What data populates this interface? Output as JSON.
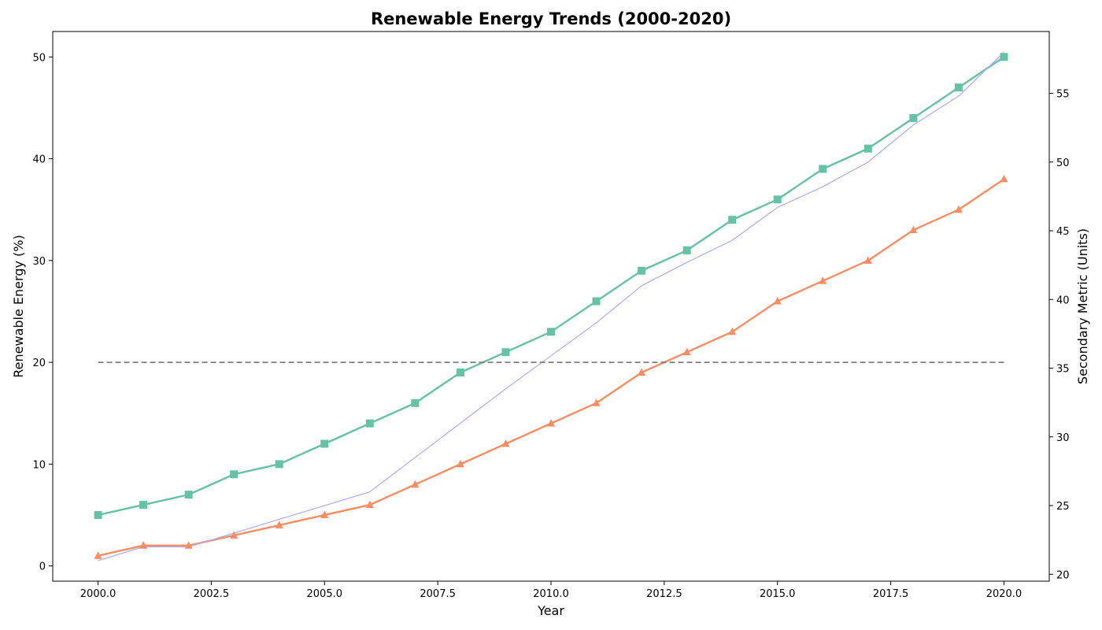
{
  "chart_data": {
    "type": "line",
    "title": "Renewable Energy Trends (2000-2020)",
    "xlabel": "Year",
    "ylabel": "Renewable Energy (%)",
    "y2label": "Secondary Metric (Units)",
    "x": [
      2000,
      2001,
      2002,
      2003,
      2004,
      2005,
      2006,
      2007,
      2008,
      2009,
      2010,
      2011,
      2012,
      2013,
      2014,
      2015,
      2016,
      2017,
      2018,
      2019,
      2020
    ],
    "xlim": [
      1999.0,
      2021.0
    ],
    "ylim": [
      -1.5,
      52.5
    ],
    "y2lim": [
      19.5,
      59.5
    ],
    "x_ticks": [
      "2000.0",
      "2002.5",
      "2005.0",
      "2007.5",
      "2010.0",
      "2012.5",
      "2015.0",
      "2017.5",
      "2020.0"
    ],
    "y_ticks": [
      "0",
      "10",
      "20",
      "30",
      "40",
      "50"
    ],
    "y2_ticks": [
      "20",
      "25",
      "30",
      "35",
      "40",
      "45",
      "50",
      "55"
    ],
    "grid": false,
    "series": [
      {
        "values": [
          5,
          6,
          7,
          9,
          10,
          12,
          14,
          16,
          19,
          21,
          23,
          26,
          29,
          31,
          34,
          36,
          39,
          41,
          44,
          47,
          50
        ],
        "axis": "left",
        "color": "#66c2a5",
        "marker": "square"
      },
      {
        "values": [
          1,
          2,
          2,
          3,
          4,
          5,
          6,
          8,
          10,
          12,
          14,
          16,
          19,
          21,
          23,
          26,
          28,
          30,
          33,
          35,
          38
        ],
        "axis": "left",
        "color": "#fc8d62",
        "marker": "triangle"
      },
      {
        "values": [
          21,
          22,
          22,
          23,
          24,
          25,
          26,
          28.5,
          31,
          33.5,
          35.9,
          38.3,
          41,
          42.7,
          44.3,
          46.7,
          48.2,
          50,
          52.7,
          54.8,
          58
        ],
        "axis": "right",
        "color": "#aaaaff",
        "marker": "none"
      },
      {
        "values": [
          20,
          20
        ],
        "x": [
          2000,
          2020
        ],
        "axis": "left",
        "color": "#808080",
        "style": "dashed"
      }
    ]
  }
}
